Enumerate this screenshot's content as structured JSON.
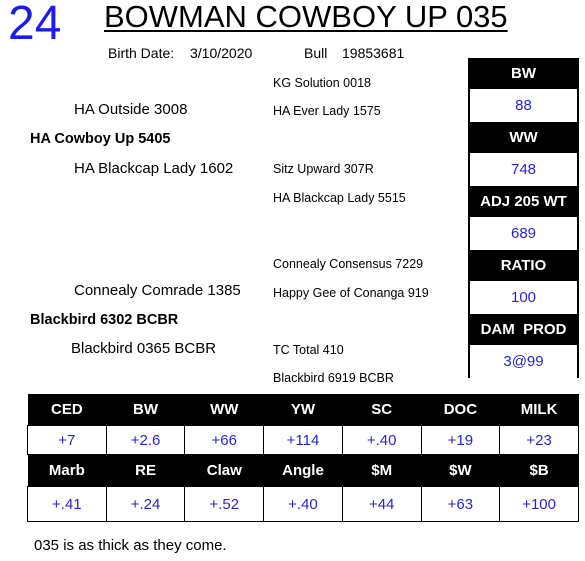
{
  "header": {
    "lot_number": "24",
    "animal_name": "BOWMAN COWBOY UP 035",
    "birth_date_label": "Birth Date:",
    "birth_date": "3/10/2020",
    "sex": "Bull",
    "registration": "19853681"
  },
  "pedigree": {
    "sire": "HA Cowboy Up 5405",
    "sire_sire": "HA Outside 3008",
    "sire_dam": "HA Blackcap Lady 1602",
    "sire_sire_sire": "KG Solution 0018",
    "sire_sire_dam": "HA Ever Lady 1575",
    "sire_dam_sire": "Sitz Upward 307R",
    "sire_dam_dam": "HA Blackcap Lady 5515",
    "dam": "Blackbird 6302 BCBR",
    "dam_sire": "Connealy Comrade 1385",
    "dam_dam": "Blackbird 0365 BCBR",
    "dam_sire_sire": "Connealy Consensus 7229",
    "dam_sire_dam": "Happy Gee of Conanga 919",
    "dam_dam_sire": "TC Total 410",
    "dam_dam_dam": "Blackbird 6919 BCBR"
  },
  "performance": [
    {
      "label": "BW",
      "value": "88"
    },
    {
      "label": "WW",
      "value": "748"
    },
    {
      "label": "ADJ 205 WT",
      "value": "689"
    },
    {
      "label": "RATIO",
      "value": "100"
    },
    {
      "label": "DAM  PROD",
      "value": "3@99"
    }
  ],
  "epds_row1": {
    "headers": [
      "CED",
      "BW",
      "WW",
      "YW",
      "SC",
      "DOC",
      "MILK"
    ],
    "values": [
      "+7",
      "+2.6",
      "+66",
      "+114",
      "+.40",
      "+19",
      "+23"
    ]
  },
  "epds_row2": {
    "headers": [
      "Marb",
      "RE",
      "Claw",
      "Angle",
      "$M",
      "$W",
      "$B"
    ],
    "values": [
      "+.41",
      "+.24",
      "+.52",
      "+.40",
      "+44",
      "+63",
      "+100"
    ]
  },
  "comment": "035 is as thick as they come.",
  "colors": {
    "accent_blue": "#1c1cf0",
    "value_blue": "#2525d6",
    "header_bg": "#000000"
  }
}
